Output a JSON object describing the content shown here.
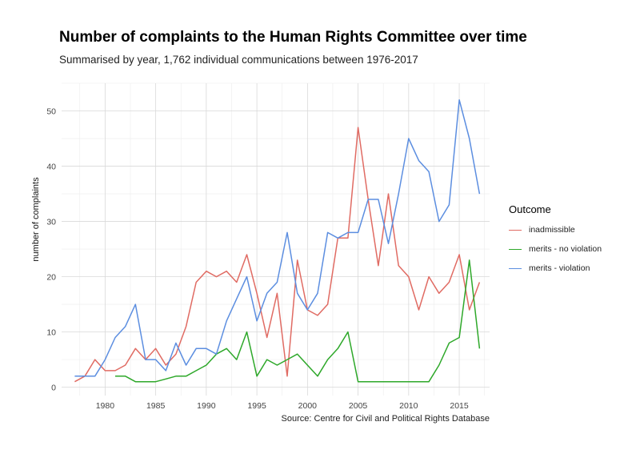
{
  "header": {
    "title": "Number of complaints to the Human Rights Committee over time",
    "subtitle": "Summarised by year, 1,762 individual communications between 1976-2017"
  },
  "caption": "Source: Centre for Civil and Political Rights Database",
  "legend": {
    "title": "Outcome",
    "position": "right"
  },
  "chart_data": {
    "type": "line",
    "title": "Number of complaints to the Human Rights Committee over time",
    "subtitle": "Summarised by year, 1,762 individual communications between 1976-2017",
    "xlabel": "",
    "ylabel": "number of complaints",
    "xlim": [
      1975.7,
      2018
    ],
    "ylim": [
      -1.5,
      55
    ],
    "xticks": [
      1980,
      1985,
      1990,
      1995,
      2000,
      2005,
      2010,
      2015
    ],
    "yticks": [
      0,
      10,
      20,
      30,
      40,
      50
    ],
    "grid": true,
    "series": [
      {
        "name": "inadmissible",
        "color": "#e06b63",
        "x": [
          1977,
          1978,
          1979,
          1980,
          1981,
          1982,
          1983,
          1984,
          1985,
          1986,
          1987,
          1988,
          1989,
          1990,
          1991,
          1992,
          1993,
          1994,
          1995,
          1996,
          1997,
          1998,
          1999,
          2000,
          2001,
          2002,
          2003,
          2004,
          2005,
          2006,
          2007,
          2008,
          2009,
          2010,
          2011,
          2012,
          2013,
          2014,
          2015,
          2016,
          2017
        ],
        "values": [
          1,
          2,
          5,
          3,
          3,
          4,
          7,
          5,
          7,
          4,
          6,
          11,
          19,
          21,
          20,
          21,
          19,
          24,
          17,
          9,
          17,
          2,
          23,
          14,
          13,
          15,
          27,
          27,
          47,
          34,
          22,
          35,
          22,
          20,
          14,
          20,
          17,
          19,
          24,
          14,
          19
        ]
      },
      {
        "name": "merits - no violation",
        "color": "#2ea82a",
        "x": [
          1981,
          1982,
          1983,
          1984,
          1985,
          1986,
          1987,
          1988,
          1989,
          1990,
          1991,
          1992,
          1993,
          1994,
          1995,
          1996,
          1997,
          1998,
          1999,
          2000,
          2001,
          2002,
          2003,
          2004,
          2005,
          2006,
          2007,
          2008,
          2009,
          2010,
          2011,
          2012,
          2013,
          2014,
          2015,
          2016,
          2017
        ],
        "values": [
          2,
          2,
          1,
          1,
          1,
          1.5,
          2,
          2,
          3,
          4,
          6,
          7,
          5,
          10,
          2,
          5,
          4,
          5,
          6,
          4,
          2,
          5,
          7,
          10,
          1,
          1,
          1,
          1,
          1,
          1,
          1,
          1,
          4,
          8,
          9,
          23,
          7
        ]
      },
      {
        "name": "merits - violation",
        "color": "#5c8ee0",
        "x": [
          1977,
          1978,
          1979,
          1980,
          1981,
          1982,
          1983,
          1984,
          1985,
          1986,
          1987,
          1988,
          1989,
          1990,
          1991,
          1992,
          1993,
          1994,
          1995,
          1996,
          1997,
          1998,
          1999,
          2000,
          2001,
          2002,
          2003,
          2004,
          2005,
          2006,
          2007,
          2008,
          2009,
          2010,
          2011,
          2012,
          2013,
          2014,
          2015,
          2016,
          2017
        ],
        "values": [
          2,
          2,
          2,
          5,
          9,
          11,
          15,
          5,
          5,
          3,
          8,
          4,
          7,
          7,
          6,
          12,
          16,
          20,
          12,
          17,
          19,
          28,
          17,
          14,
          17,
          28,
          27,
          28,
          28,
          34,
          34,
          26,
          35,
          45,
          41,
          39,
          30,
          33,
          52,
          45,
          35
        ]
      }
    ]
  }
}
